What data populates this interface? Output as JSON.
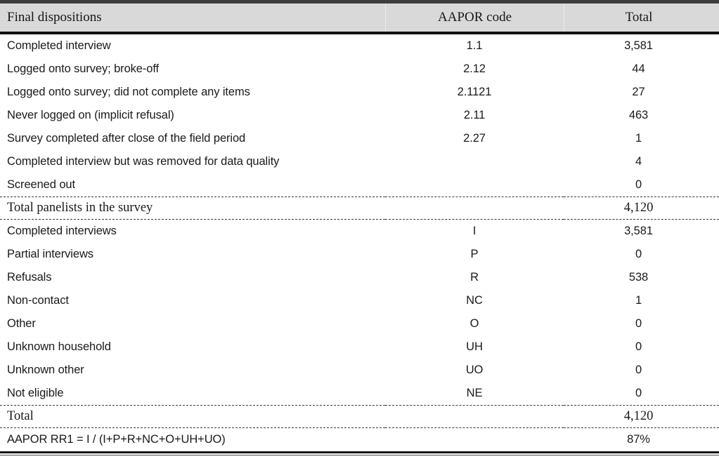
{
  "header": {
    "col_dispositions": "Final dispositions",
    "col_code": "AAPOR code",
    "col_total": "Total"
  },
  "dispositions": {
    "rows": [
      {
        "label": "Completed interview",
        "code": "1.1",
        "total": "3,581"
      },
      {
        "label": "Logged onto survey; broke-off",
        "code": "2.12",
        "total": "44"
      },
      {
        "label": "Logged onto survey; did not complete any items",
        "code": "2.1121",
        "total": "27"
      },
      {
        "label": "Never logged on (implicit refusal)",
        "code": "2.11",
        "total": "463"
      },
      {
        "label": "Survey completed after close of the field period",
        "code": "2.27",
        "total": "1"
      },
      {
        "label": "Completed interview but was removed for data quality",
        "code": "",
        "total": "4"
      },
      {
        "label": "Screened out",
        "code": "",
        "total": "0"
      }
    ]
  },
  "panelists_total": {
    "label": "Total panelists in the survey",
    "code": "",
    "total": "4,120"
  },
  "aapor_categories": {
    "rows": [
      {
        "label": "Completed interviews",
        "code": "I",
        "total": "3,581"
      },
      {
        "label": "Partial interviews",
        "code": "P",
        "total": "0"
      },
      {
        "label": "Refusals",
        "code": "R",
        "total": "538"
      },
      {
        "label": "Non-contact",
        "code": "NC",
        "total": "1"
      },
      {
        "label": "Other",
        "code": "O",
        "total": "0"
      },
      {
        "label": "Unknown household",
        "code": "UH",
        "total": "0"
      },
      {
        "label": "Unknown other",
        "code": "UO",
        "total": "0"
      },
      {
        "label": "Not eligible",
        "code": "NE",
        "total": "0"
      }
    ]
  },
  "grand_total": {
    "label": "Total",
    "code": "",
    "total": "4,120"
  },
  "response_rate": {
    "label": "AAPOR RR1 = I / (I+P+R+NC+O+UH+UO)",
    "code": "",
    "total": "87%"
  },
  "colors": {
    "header_bg": "#d9d9d9",
    "top_rule": "#3e3e3e",
    "heavy_rule": "#121212",
    "text": "#1a1a1a"
  }
}
